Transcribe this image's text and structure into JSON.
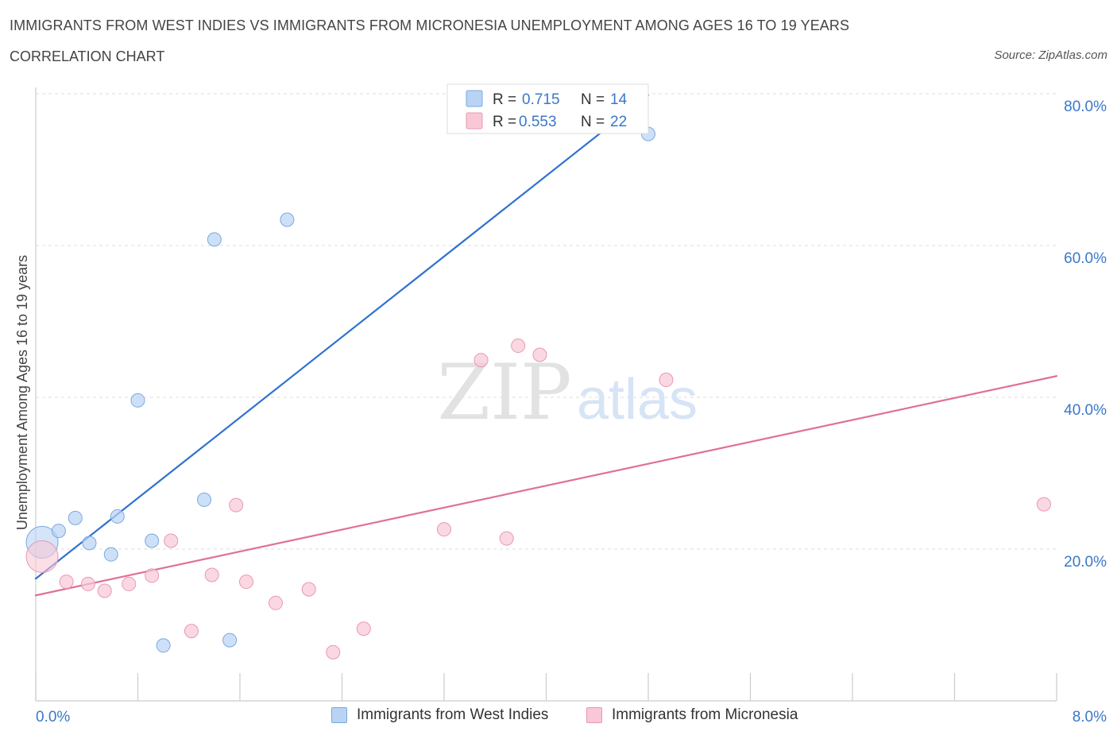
{
  "header": {
    "title": "IMMIGRANTS FROM WEST INDIES VS IMMIGRANTS FROM MICRONESIA UNEMPLOYMENT AMONG AGES 16 TO 19 YEARS",
    "subtitle": "CORRELATION CHART",
    "source": "Source: ZipAtlas.com"
  },
  "watermark": {
    "zip": "ZIP",
    "atlas": "atlas"
  },
  "colors": {
    "blue_fill": "#b9d3f5",
    "blue_stroke": "#7aa8e0",
    "blue_line": "#2f72d0",
    "pink_fill": "#f8c8d6",
    "pink_stroke": "#e898b2",
    "pink_line": "#e07098",
    "value_text": "#3a78c9",
    "axis_text": "#3a78c9"
  },
  "legend_top": {
    "rows": [
      {
        "r_label": "R = ",
        "r_value": "0.715",
        "n_label": "N = ",
        "n_value": "14",
        "series": "blue"
      },
      {
        "r_label": "R = ",
        "r_value": "0.553",
        "n_label": "N = ",
        "n_value": "22",
        "series": "pink"
      }
    ]
  },
  "legend_bottom": [
    {
      "label": "Immigrants from West Indies",
      "series": "blue"
    },
    {
      "label": "Immigrants from Micronesia",
      "series": "pink"
    }
  ],
  "chart_data": {
    "type": "scatter",
    "ylabel": "Unemployment Among Ages 16 to 19 years",
    "xlim": [
      0,
      8
    ],
    "ylim": [
      0,
      80
    ],
    "x_tick_labels": [
      {
        "value": 0,
        "label": "0.0%"
      },
      {
        "value": 8,
        "label": "8.0%"
      }
    ],
    "y_tick_labels": [
      {
        "value": 20,
        "label": "20.0%"
      },
      {
        "value": 40,
        "label": "40.0%"
      },
      {
        "value": 60,
        "label": "60.0%"
      },
      {
        "value": 80,
        "label": "80.0%"
      }
    ],
    "series": [
      {
        "name": "Immigrants from West Indies",
        "color": "blue",
        "points": [
          {
            "x": 0.05,
            "y": 20.9,
            "big": true
          },
          {
            "x": 0.18,
            "y": 22.4
          },
          {
            "x": 0.31,
            "y": 24.1
          },
          {
            "x": 0.42,
            "y": 20.8
          },
          {
            "x": 0.59,
            "y": 19.3
          },
          {
            "x": 0.64,
            "y": 24.3
          },
          {
            "x": 0.8,
            "y": 39.6
          },
          {
            "x": 0.91,
            "y": 21.1
          },
          {
            "x": 1.0,
            "y": 7.3
          },
          {
            "x": 1.32,
            "y": 26.5
          },
          {
            "x": 1.4,
            "y": 60.8
          },
          {
            "x": 1.52,
            "y": 8.0
          },
          {
            "x": 1.97,
            "y": 63.4
          },
          {
            "x": 4.8,
            "y": 74.7
          }
        ],
        "trend": {
          "x0": 0.0,
          "y0": 16.1,
          "x1": 4.8,
          "y1": 79.8
        }
      },
      {
        "name": "Immigrants from Micronesia",
        "color": "pink",
        "points": [
          {
            "x": 0.05,
            "y": 19.0,
            "big": true
          },
          {
            "x": 0.24,
            "y": 15.7
          },
          {
            "x": 0.41,
            "y": 15.4
          },
          {
            "x": 0.54,
            "y": 14.5
          },
          {
            "x": 0.73,
            "y": 15.4
          },
          {
            "x": 0.91,
            "y": 16.5
          },
          {
            "x": 1.06,
            "y": 21.1
          },
          {
            "x": 1.22,
            "y": 9.2
          },
          {
            "x": 1.38,
            "y": 16.6
          },
          {
            "x": 1.57,
            "y": 25.8
          },
          {
            "x": 1.65,
            "y": 15.7
          },
          {
            "x": 1.88,
            "y": 12.9
          },
          {
            "x": 2.14,
            "y": 14.7
          },
          {
            "x": 2.33,
            "y": 6.4
          },
          {
            "x": 2.57,
            "y": 9.5
          },
          {
            "x": 3.2,
            "y": 22.6
          },
          {
            "x": 3.49,
            "y": 44.9
          },
          {
            "x": 3.69,
            "y": 21.4
          },
          {
            "x": 3.78,
            "y": 46.8
          },
          {
            "x": 3.95,
            "y": 45.6
          },
          {
            "x": 4.94,
            "y": 42.3
          },
          {
            "x": 7.9,
            "y": 25.9
          }
        ],
        "trend": {
          "x0": 0.0,
          "y0": 13.9,
          "x1": 8.0,
          "y1": 42.8
        }
      }
    ]
  }
}
